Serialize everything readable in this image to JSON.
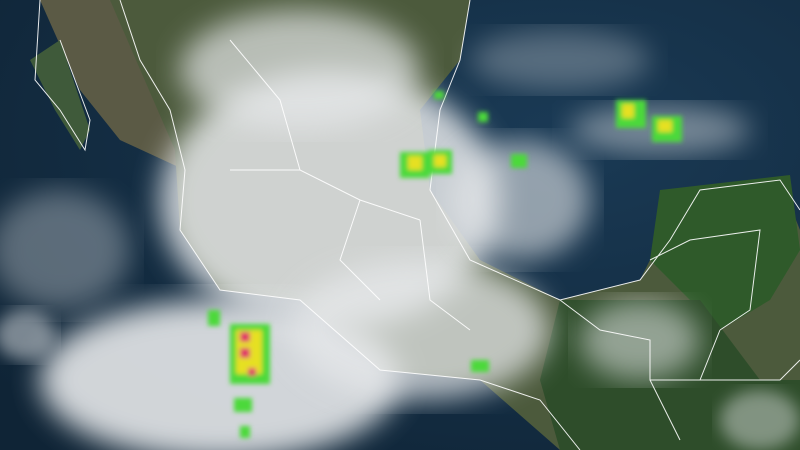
{
  "map": {
    "type": "satellite-imagery",
    "colors": {
      "ocean": "#1d3a52",
      "ocean_deep": "#0f2436",
      "land": "#2f5a2a",
      "land_dry": "#5b5a45",
      "cloud": "#e6e8ea",
      "boundary": "#ffffff",
      "lightning_low": "#4cd93a",
      "lightning_mid": "#e6e020",
      "lightning_high": "#e0306a"
    }
  }
}
